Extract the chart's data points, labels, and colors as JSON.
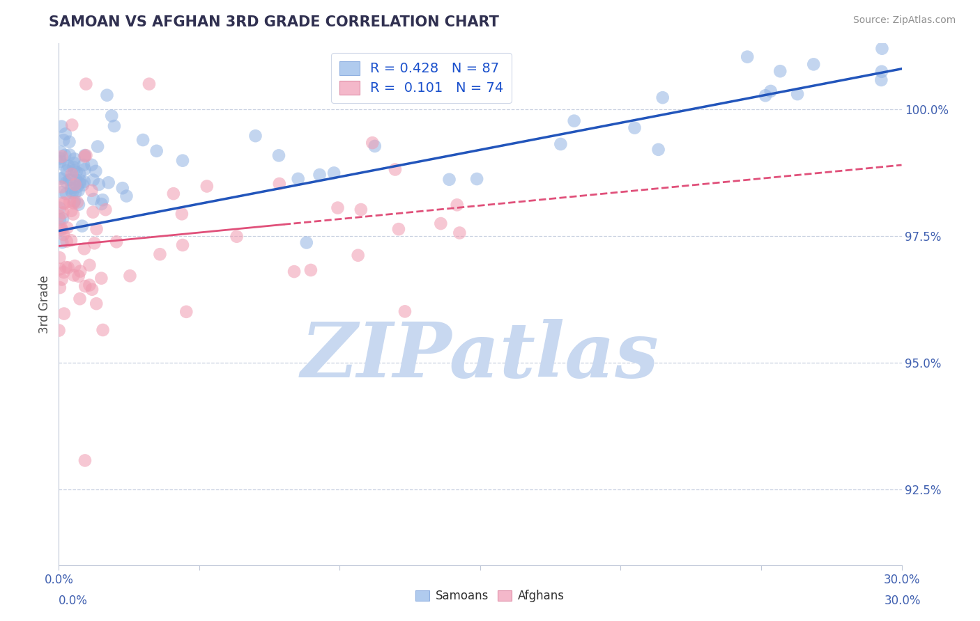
{
  "title": "SAMOAN VS AFGHAN 3RD GRADE CORRELATION CHART",
  "source": "Source: ZipAtlas.com",
  "ylabel": "3rd Grade",
  "x_min": 0.0,
  "x_max": 30.0,
  "y_min": 91.0,
  "y_max": 101.3,
  "y_ticks": [
    92.5,
    95.0,
    97.5,
    100.0
  ],
  "y_tick_labels": [
    "92.5%",
    "95.0%",
    "97.5%",
    "100.0%"
  ],
  "blue_color": "#92b4e3",
  "pink_color": "#f09ab0",
  "blue_line_color": "#2255bb",
  "pink_line_color": "#e0507a",
  "R_blue": 0.428,
  "N_blue": 87,
  "R_pink": 0.101,
  "N_pink": 74,
  "watermark": "ZIPatlas",
  "watermark_color": "#c8d8f0",
  "footer_samoan": "Samoans",
  "footer_afghan": "Afghans",
  "blue_line_x0": 0.0,
  "blue_line_y0": 97.6,
  "blue_line_x1": 30.0,
  "blue_line_y1": 100.8,
  "pink_solid_x0": 0.0,
  "pink_solid_y0": 97.3,
  "pink_solid_x1": 8.0,
  "pink_solid_y1": 97.9,
  "pink_dash_x0": 8.0,
  "pink_dash_y0": 97.9,
  "pink_dash_x1": 30.0,
  "pink_dash_y1": 98.9,
  "title_color": "#303050",
  "source_color": "#909090",
  "tick_color": "#4060b0",
  "ylabel_color": "#505050"
}
